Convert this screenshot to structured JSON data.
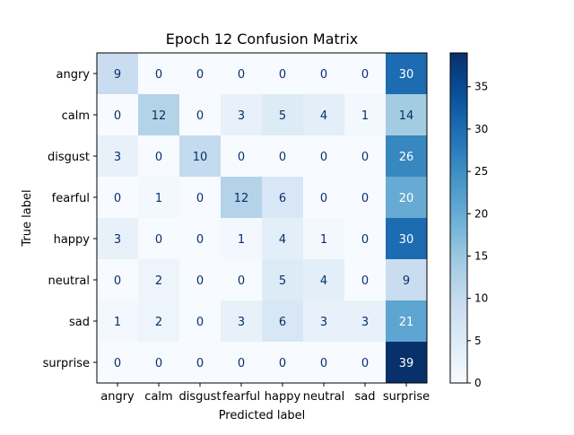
{
  "chart_data": {
    "type": "heatmap",
    "title": "Epoch 12 Confusion Matrix",
    "xlabel": "Predicted label",
    "ylabel": "True label",
    "x_categories": [
      "angry",
      "calm",
      "disgust",
      "fearful",
      "happy",
      "neutral",
      "sad",
      "surprise"
    ],
    "y_categories": [
      "angry",
      "calm",
      "disgust",
      "fearful",
      "happy",
      "neutral",
      "sad",
      "surprise"
    ],
    "values": [
      [
        9,
        0,
        0,
        0,
        0,
        0,
        0,
        30
      ],
      [
        0,
        12,
        0,
        3,
        5,
        4,
        1,
        14
      ],
      [
        3,
        0,
        10,
        0,
        0,
        0,
        0,
        26
      ],
      [
        0,
        1,
        0,
        12,
        6,
        0,
        0,
        20
      ],
      [
        3,
        0,
        0,
        1,
        4,
        1,
        0,
        30
      ],
      [
        0,
        2,
        0,
        0,
        5,
        4,
        0,
        9
      ],
      [
        1,
        2,
        0,
        3,
        6,
        3,
        3,
        21
      ],
      [
        0,
        0,
        0,
        0,
        0,
        0,
        0,
        39
      ]
    ],
    "colorbar": {
      "colormap": "Blues",
      "range": [
        0,
        39
      ],
      "ticks": [
        0,
        5,
        10,
        15,
        20,
        25,
        30,
        35
      ]
    },
    "grid": false
  }
}
